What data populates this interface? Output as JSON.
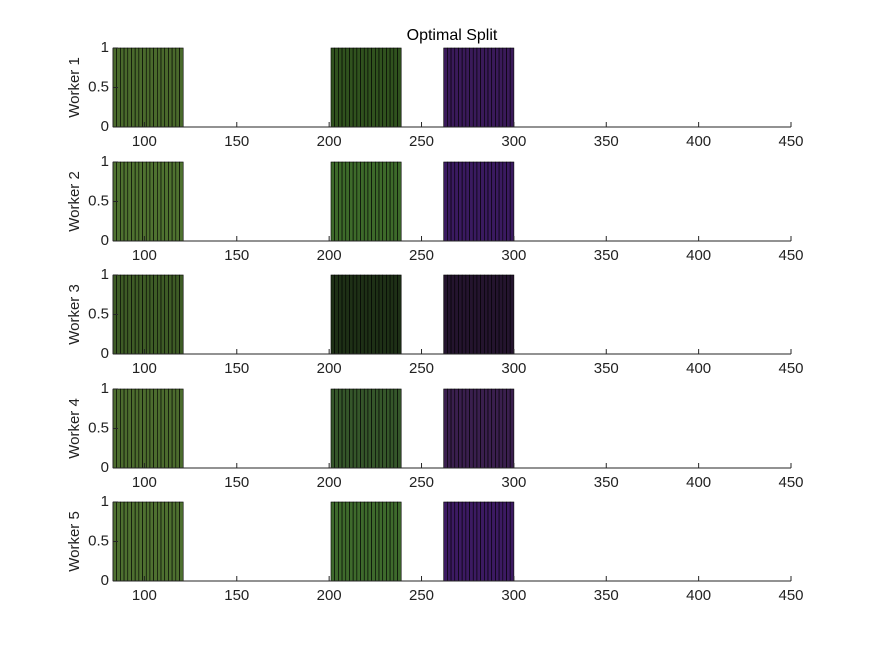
{
  "chart_data": [
    {
      "type": "bar",
      "title": "Optimal Split",
      "ylabel": "Worker 1",
      "xlim": [
        83,
        450
      ],
      "ylim": [
        0,
        1
      ],
      "xticks": [
        100,
        150,
        200,
        250,
        300,
        350,
        400,
        450
      ],
      "yticks": [
        0,
        0.5,
        1
      ],
      "series": [
        {
          "color": "#4a6a2c",
          "x": [
            84,
            86,
            88,
            90,
            92,
            94,
            96,
            98,
            100,
            102,
            104,
            106,
            108,
            110,
            112,
            114,
            116,
            118,
            120
          ],
          "values": [
            1,
            1,
            1,
            1,
            1,
            1,
            1,
            1,
            1,
            1,
            1,
            1,
            1,
            1,
            1,
            1,
            1,
            1,
            1
          ]
        },
        {
          "color": "#30521e",
          "x": [
            202,
            204,
            206,
            208,
            210,
            212,
            214,
            216,
            218,
            220,
            222,
            224,
            226,
            228,
            230,
            232,
            234,
            236,
            238
          ],
          "values": [
            1,
            1,
            1,
            1,
            1,
            1,
            1,
            1,
            1,
            1,
            1,
            1,
            1,
            1,
            1,
            1,
            1,
            1,
            1
          ]
        },
        {
          "color": "#3a1a5a",
          "x": [
            263,
            265,
            267,
            269,
            271,
            273,
            275,
            277,
            279,
            281,
            283,
            285,
            287,
            289,
            291,
            293,
            295,
            297,
            299
          ],
          "values": [
            1,
            1,
            1,
            1,
            1,
            1,
            1,
            1,
            1,
            1,
            1,
            1,
            1,
            1,
            1,
            1,
            1,
            1,
            1
          ]
        }
      ]
    },
    {
      "type": "bar",
      "ylabel": "Worker 2",
      "xlim": [
        83,
        450
      ],
      "ylim": [
        0,
        1
      ],
      "xticks": [
        100,
        150,
        200,
        250,
        300,
        350,
        400,
        450
      ],
      "yticks": [
        0,
        0.5,
        1
      ],
      "series": [
        {
          "color": "#4f7230",
          "x": [
            84,
            86,
            88,
            90,
            92,
            94,
            96,
            98,
            100,
            102,
            104,
            106,
            108,
            110,
            112,
            114,
            116,
            118,
            120
          ],
          "values": [
            1,
            1,
            1,
            1,
            1,
            1,
            1,
            1,
            1,
            1,
            1,
            1,
            1,
            1,
            1,
            1,
            1,
            1,
            1
          ]
        },
        {
          "color": "#3d6a2a",
          "x": [
            202,
            204,
            206,
            208,
            210,
            212,
            214,
            216,
            218,
            220,
            222,
            224,
            226,
            228,
            230,
            232,
            234,
            236,
            238
          ],
          "values": [
            1,
            1,
            1,
            1,
            1,
            1,
            1,
            1,
            1,
            1,
            1,
            1,
            1,
            1,
            1,
            1,
            1,
            1,
            1
          ]
        },
        {
          "color": "#3a1a60",
          "x": [
            263,
            265,
            267,
            269,
            271,
            273,
            275,
            277,
            279,
            281,
            283,
            285,
            287,
            289,
            291,
            293,
            295,
            297,
            299
          ],
          "values": [
            1,
            1,
            1,
            1,
            1,
            1,
            1,
            1,
            1,
            1,
            1,
            1,
            1,
            1,
            1,
            1,
            1,
            1,
            1
          ]
        }
      ]
    },
    {
      "type": "bar",
      "ylabel": "Worker 3",
      "xlim": [
        83,
        450
      ],
      "ylim": [
        0,
        1
      ],
      "xticks": [
        100,
        150,
        200,
        250,
        300,
        350,
        400,
        450
      ],
      "yticks": [
        0,
        0.5,
        1
      ],
      "series": [
        {
          "color": "#3e5c26",
          "x": [
            84,
            86,
            88,
            90,
            92,
            94,
            96,
            98,
            100,
            102,
            104,
            106,
            108,
            110,
            112,
            114,
            116,
            118,
            120
          ],
          "values": [
            1,
            1,
            1,
            1,
            1,
            1,
            1,
            1,
            1,
            1,
            1,
            1,
            1,
            1,
            1,
            1,
            1,
            1,
            1
          ]
        },
        {
          "color": "#1e3016",
          "x": [
            202,
            204,
            206,
            208,
            210,
            212,
            214,
            216,
            218,
            220,
            222,
            224,
            226,
            228,
            230,
            232,
            234,
            236,
            238
          ],
          "values": [
            1,
            1,
            1,
            1,
            1,
            1,
            1,
            1,
            1,
            1,
            1,
            1,
            1,
            1,
            1,
            1,
            1,
            1,
            1
          ]
        },
        {
          "color": "#24142e",
          "x": [
            263,
            265,
            267,
            269,
            271,
            273,
            275,
            277,
            279,
            281,
            283,
            285,
            287,
            289,
            291,
            293,
            295,
            297,
            299
          ],
          "values": [
            1,
            1,
            1,
            1,
            1,
            1,
            1,
            1,
            1,
            1,
            1,
            1,
            1,
            1,
            1,
            1,
            1,
            1,
            1
          ]
        }
      ]
    },
    {
      "type": "bar",
      "ylabel": "Worker 4",
      "xlim": [
        83,
        450
      ],
      "ylim": [
        0,
        1
      ],
      "xticks": [
        100,
        150,
        200,
        250,
        300,
        350,
        400,
        450
      ],
      "yticks": [
        0,
        0.5,
        1
      ],
      "series": [
        {
          "color": "#4c6c2e",
          "x": [
            84,
            86,
            88,
            90,
            92,
            94,
            96,
            98,
            100,
            102,
            104,
            106,
            108,
            110,
            112,
            114,
            116,
            118,
            120
          ],
          "values": [
            1,
            1,
            1,
            1,
            1,
            1,
            1,
            1,
            1,
            1,
            1,
            1,
            1,
            1,
            1,
            1,
            1,
            1,
            1
          ]
        },
        {
          "color": "#35562a",
          "x": [
            202,
            204,
            206,
            208,
            210,
            212,
            214,
            216,
            218,
            220,
            222,
            224,
            226,
            228,
            230,
            232,
            234,
            236,
            238
          ],
          "values": [
            1,
            1,
            1,
            1,
            1,
            1,
            1,
            1,
            1,
            1,
            1,
            1,
            1,
            1,
            1,
            1,
            1,
            1,
            1
          ]
        },
        {
          "color": "#3a1f4e",
          "x": [
            263,
            265,
            267,
            269,
            271,
            273,
            275,
            277,
            279,
            281,
            283,
            285,
            287,
            289,
            291,
            293,
            295,
            297,
            299
          ],
          "values": [
            1,
            1,
            1,
            1,
            1,
            1,
            1,
            1,
            1,
            1,
            1,
            1,
            1,
            1,
            1,
            1,
            1,
            1,
            1
          ]
        }
      ]
    },
    {
      "type": "bar",
      "ylabel": "Worker 5",
      "xlim": [
        83,
        450
      ],
      "ylim": [
        0,
        1
      ],
      "xticks": [
        100,
        150,
        200,
        250,
        300,
        350,
        400,
        450
      ],
      "yticks": [
        0,
        0.5,
        1
      ],
      "series": [
        {
          "color": "#4e7030",
          "x": [
            84,
            86,
            88,
            90,
            92,
            94,
            96,
            98,
            100,
            102,
            104,
            106,
            108,
            110,
            112,
            114,
            116,
            118,
            120
          ],
          "values": [
            1,
            1,
            1,
            1,
            1,
            1,
            1,
            1,
            1,
            1,
            1,
            1,
            1,
            1,
            1,
            1,
            1,
            1,
            1
          ]
        },
        {
          "color": "#3e6a2c",
          "x": [
            202,
            204,
            206,
            208,
            210,
            212,
            214,
            216,
            218,
            220,
            222,
            224,
            226,
            228,
            230,
            232,
            234,
            236,
            238
          ],
          "values": [
            1,
            1,
            1,
            1,
            1,
            1,
            1,
            1,
            1,
            1,
            1,
            1,
            1,
            1,
            1,
            1,
            1,
            1,
            1
          ]
        },
        {
          "color": "#3c1a62",
          "x": [
            263,
            265,
            267,
            269,
            271,
            273,
            275,
            277,
            279,
            281,
            283,
            285,
            287,
            289,
            291,
            293,
            295,
            297,
            299
          ],
          "values": [
            1,
            1,
            1,
            1,
            1,
            1,
            1,
            1,
            1,
            1,
            1,
            1,
            1,
            1,
            1,
            1,
            1,
            1,
            1
          ]
        }
      ]
    }
  ]
}
